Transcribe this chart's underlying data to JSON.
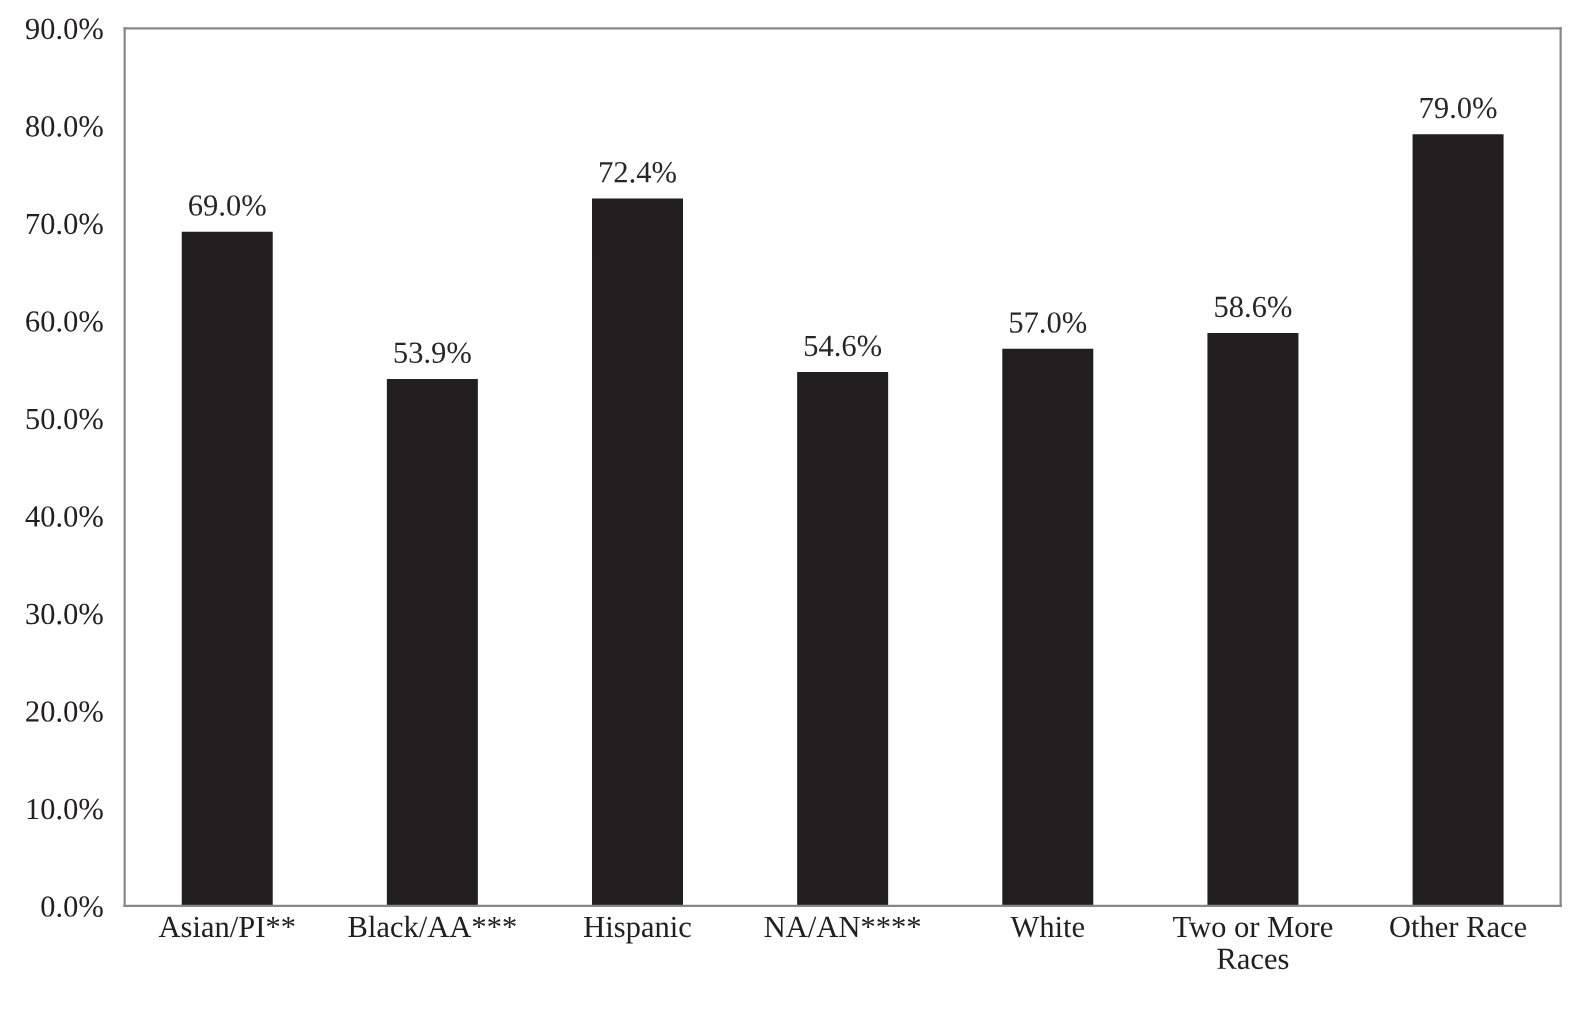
{
  "chart_data": {
    "type": "bar",
    "categories": [
      "Asian/PI**",
      "Black/AA***",
      "Hispanic",
      "NA/AN****",
      "White",
      "Two or More\nRaces",
      "Other Race"
    ],
    "values": [
      69.0,
      53.9,
      72.4,
      54.6,
      57.0,
      58.6,
      79.0
    ],
    "value_labels": [
      "69.0%",
      "53.9%",
      "72.4%",
      "54.6%",
      "57.0%",
      "58.6%",
      "79.0%"
    ],
    "color": "#231f20",
    "ylim": [
      0,
      90
    ],
    "yticks": [
      {
        "value": 0,
        "label": "0.0%"
      },
      {
        "value": 10,
        "label": "10.0%"
      },
      {
        "value": 20,
        "label": "20.0%"
      },
      {
        "value": 30,
        "label": "30.0%"
      },
      {
        "value": 40,
        "label": "40.0%"
      },
      {
        "value": 50,
        "label": "50.0%"
      },
      {
        "value": 60,
        "label": "60.0%"
      },
      {
        "value": 70,
        "label": "70.0%"
      },
      {
        "value": 80,
        "label": "80.0%"
      },
      {
        "value": 90,
        "label": "90.0%"
      }
    ],
    "grid": false
  }
}
